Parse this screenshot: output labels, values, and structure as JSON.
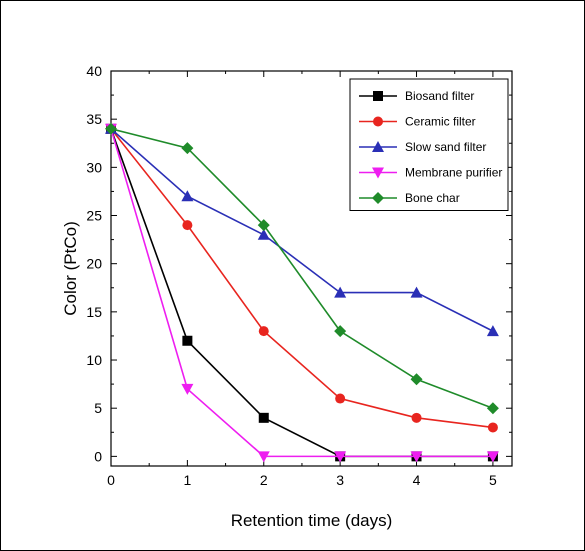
{
  "chart_data": {
    "type": "line",
    "xlabel": "Retention time (days)",
    "ylabel": "Color (PtCo)",
    "xlim": [
      0,
      5.25
    ],
    "ylim": [
      -1,
      40
    ],
    "xticks": [
      0,
      1,
      2,
      3,
      4,
      5
    ],
    "yticks": [
      0,
      5,
      10,
      15,
      20,
      25,
      30,
      35,
      40
    ],
    "legend_position": "top-right",
    "grid": false,
    "x": [
      0,
      1,
      2,
      3,
      4,
      5
    ],
    "series": [
      {
        "name": "Biosand filter",
        "color": "#000000",
        "marker": "square",
        "values": [
          34,
          12,
          4,
          0,
          0,
          0
        ]
      },
      {
        "name": "Ceramic filter",
        "color": "#e8251f",
        "marker": "circle",
        "values": [
          34,
          24,
          13,
          6,
          4,
          3
        ]
      },
      {
        "name": "Slow sand filter",
        "color": "#2a2fb6",
        "marker": "triangle-up",
        "values": [
          34,
          27,
          23,
          17,
          17,
          13
        ]
      },
      {
        "name": "Membrane purifier",
        "color": "#ee1ef0",
        "marker": "triangle-down",
        "values": [
          34,
          7,
          0,
          0,
          0,
          0
        ]
      },
      {
        "name": "Bone char",
        "color": "#1f8b2a",
        "marker": "diamond",
        "values": [
          34,
          32,
          24,
          13,
          8,
          5
        ]
      }
    ]
  }
}
